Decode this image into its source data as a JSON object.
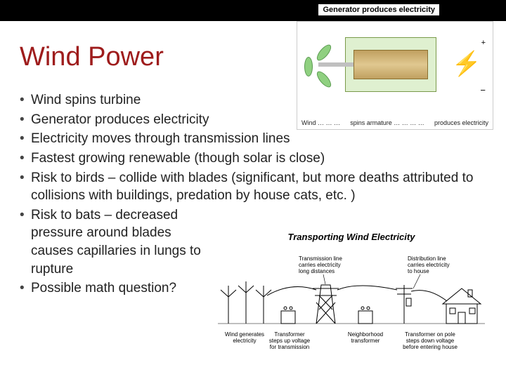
{
  "title": "Wind Power",
  "title_color": "#9e1c1c",
  "top_caption": "Generator produces electricity",
  "bullets": [
    {
      "text": "Wind spins turbine",
      "narrow": false
    },
    {
      "text": "Generator produces electricity",
      "narrow": false
    },
    {
      "text": "Electricity moves through transmission lines",
      "narrow": false
    },
    {
      "text": "Fastest growing renewable (though solar is close)",
      "narrow": false
    },
    {
      "text": "Risk to birds – collide with blades (significant, but more deaths attributed to collisions with buildings, predation by house cats, etc. )",
      "narrow": false
    },
    {
      "text": "Risk to bats – decreased pressure around blades causes capillaries in lungs to rupture",
      "narrow": true
    },
    {
      "text": "Possible math question?",
      "narrow": true
    }
  ],
  "generator": {
    "label_wind": "Wind … … …",
    "label_spins": "spins armature … … … …",
    "label_produces": "produces electricity",
    "plus": "+",
    "minus": "−",
    "bolt": "⚡"
  },
  "transport": {
    "title": "Transporting Wind Electricity",
    "labels": {
      "wind_gen": "Wind generates electricity",
      "xfmr_up": "Transformer steps up voltage for transmission",
      "trans_line": "Transmission line carries electricity long distances",
      "neigh_xfmr": "Neighborhood transformer",
      "dist_line": "Distribution line carries electricity to house",
      "pole_xfmr": "Transformer on pole steps down voltage before entering house"
    }
  },
  "colors": {
    "background": "#ffffff",
    "topbar": "#000000",
    "body_text": "#222222",
    "gen_bg": "#dff0d0",
    "gen_rotor": "#e0c890",
    "bolt": "#e6c800"
  },
  "typography": {
    "title_fontsize": 38,
    "body_fontsize": 19,
    "diagram_label_fontsize": 8
  }
}
